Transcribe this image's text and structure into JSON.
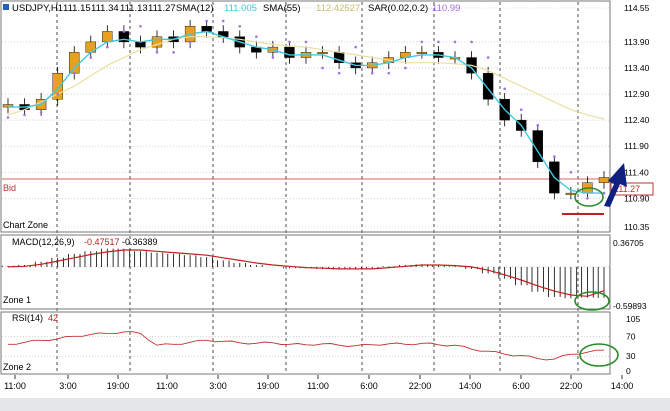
{
  "header": {
    "symbol": "USDJPY,H1",
    "open": "111.15",
    "high": "111.34",
    "low": "111.13",
    "close": "111.27",
    "sma12_label": "SMA(12)",
    "sma12_value": "111.005",
    "sma55_label": "SMA(55)",
    "sma55_value": "112.42527",
    "sar_label": "SAR(0.02,0.2)",
    "sar_value": "110.99"
  },
  "panes": {
    "price": {
      "zone_label": "Chart Zone",
      "bid_label": "Bid",
      "bid_value": "111.27",
      "axis_ticks": [
        "114.55",
        "113.90",
        "113.40",
        "112.90",
        "112.40",
        "111.90",
        "111.40",
        "110.90",
        "110.35"
      ]
    },
    "macd": {
      "label": "MACD(12,26,9)",
      "value1": "-0.47517",
      "value2": "-0.36389",
      "zone_label": "Zone 1",
      "axis_top": "0.36705",
      "axis_bottom": "-0.59893"
    },
    "rsi": {
      "label": "RSI(14)",
      "value": "42",
      "zone_label": "Zone 2",
      "axis_ticks": [
        "105",
        "70",
        "30",
        "0"
      ]
    }
  },
  "time_axis": [
    "11:00",
    "3:00",
    "19:00",
    "11:00",
    "3:00",
    "19:00",
    "11:00",
    "6:00",
    "22:00",
    "14:00",
    "6:00",
    "22:00",
    "14:00"
  ],
  "colors": {
    "background": "#ffffff",
    "grid": "#b8b8b8",
    "candle_up": "#e8a020",
    "candle_down": "#000000",
    "sma12": "#40c8e0",
    "sma55": "#e8e0a0",
    "sar": "#a070e0",
    "bid_line": "#c03030",
    "macd_hist": "#000000",
    "macd_signal": "#c02020",
    "rsi_line": "#c03030",
    "annotation_circle": "#2a8a2a",
    "annotation_arrow": "#102080",
    "support_line": "#c02020"
  },
  "chart_data": [
    {
      "type": "candlestick",
      "ylim": [
        110.35,
        114.55
      ],
      "series": [
        {
          "name": "USDJPY,H1",
          "values": [
            112.7,
            112.6,
            112.8,
            113.3,
            113.7,
            113.9,
            114.1,
            113.9,
            113.8,
            114.0,
            113.9,
            114.2,
            114.1,
            114.0,
            113.8,
            113.7,
            113.8,
            113.6,
            113.7,
            113.7,
            113.5,
            113.4,
            113.5,
            113.6,
            113.7,
            113.7,
            113.6,
            113.6,
            113.3,
            112.8,
            112.4,
            112.2,
            111.6,
            111.0,
            111.0,
            111.2,
            111.3
          ]
        },
        {
          "name": "SMA(12)",
          "values": [
            112.65,
            112.65,
            112.7,
            113.0,
            113.4,
            113.7,
            113.9,
            113.95,
            113.9,
            113.95,
            113.95,
            114.05,
            114.1,
            114.0,
            113.9,
            113.8,
            113.75,
            113.65,
            113.65,
            113.65,
            113.55,
            113.45,
            113.45,
            113.5,
            113.6,
            113.65,
            113.65,
            113.6,
            113.4,
            113.0,
            112.6,
            112.3,
            111.8,
            111.3,
            111.05,
            111.0,
            111.0
          ]
        },
        {
          "name": "SMA(55)",
          "values": [
            112.5,
            112.6,
            112.75,
            112.9,
            113.05,
            113.25,
            113.45,
            113.6,
            113.75,
            113.85,
            113.95,
            114.0,
            114.0,
            113.98,
            113.95,
            113.9,
            113.85,
            113.82,
            113.8,
            113.75,
            113.7,
            113.65,
            113.6,
            113.55,
            113.5,
            113.5,
            113.5,
            113.48,
            113.45,
            113.35,
            113.2,
            113.05,
            112.9,
            112.75,
            112.6,
            112.5,
            112.42
          ]
        },
        {
          "name": "SAR(0.02,0.2)",
          "values": [
            112.45,
            112.5,
            112.55,
            112.9,
            113.3,
            113.6,
            113.8,
            114.1,
            114.2,
            113.7,
            113.7,
            113.9,
            114.3,
            114.3,
            114.2,
            114.0,
            113.6,
            113.9,
            113.9,
            113.4,
            113.3,
            113.8,
            113.3,
            113.3,
            113.4,
            113.9,
            113.9,
            113.9,
            113.9,
            113.6,
            113.0,
            112.6,
            112.3,
            111.7,
            111.4,
            110.9,
            111.0
          ]
        }
      ]
    },
    {
      "type": "bar",
      "ylim": [
        -0.59893,
        0.36705
      ],
      "series": [
        {
          "name": "MACD(12,26,9)",
          "values": [
            0.02,
            0.03,
            0.08,
            0.14,
            0.2,
            0.24,
            0.28,
            0.28,
            0.24,
            0.22,
            0.2,
            0.18,
            0.15,
            0.1,
            0.06,
            0.03,
            0.0,
            -0.02,
            -0.02,
            -0.03,
            -0.04,
            -0.03,
            -0.02,
            0.01,
            0.03,
            0.04,
            0.03,
            0.01,
            -0.03,
            -0.1,
            -0.18,
            -0.28,
            -0.38,
            -0.46,
            -0.48,
            -0.47,
            -0.475
          ]
        },
        {
          "name": "Signal",
          "values": [
            0.0,
            0.01,
            0.04,
            0.09,
            0.14,
            0.19,
            0.23,
            0.26,
            0.26,
            0.24,
            0.22,
            0.2,
            0.18,
            0.14,
            0.1,
            0.06,
            0.03,
            0.01,
            -0.01,
            -0.02,
            -0.03,
            -0.03,
            -0.03,
            -0.01,
            0.01,
            0.03,
            0.03,
            0.02,
            0.0,
            -0.05,
            -0.12,
            -0.2,
            -0.29,
            -0.37,
            -0.43,
            -0.45,
            -0.364
          ]
        }
      ]
    },
    {
      "type": "line",
      "ylim": [
        0,
        105
      ],
      "series": [
        {
          "name": "RSI(14)",
          "values": [
            54,
            58,
            62,
            65,
            70,
            74,
            76,
            79,
            76,
            52,
            54,
            58,
            62,
            60,
            57,
            56,
            57,
            54,
            53,
            55,
            52,
            51,
            53,
            55,
            54,
            56,
            53,
            52,
            44,
            40,
            34,
            31,
            25,
            24,
            34,
            38,
            42
          ]
        }
      ]
    }
  ]
}
